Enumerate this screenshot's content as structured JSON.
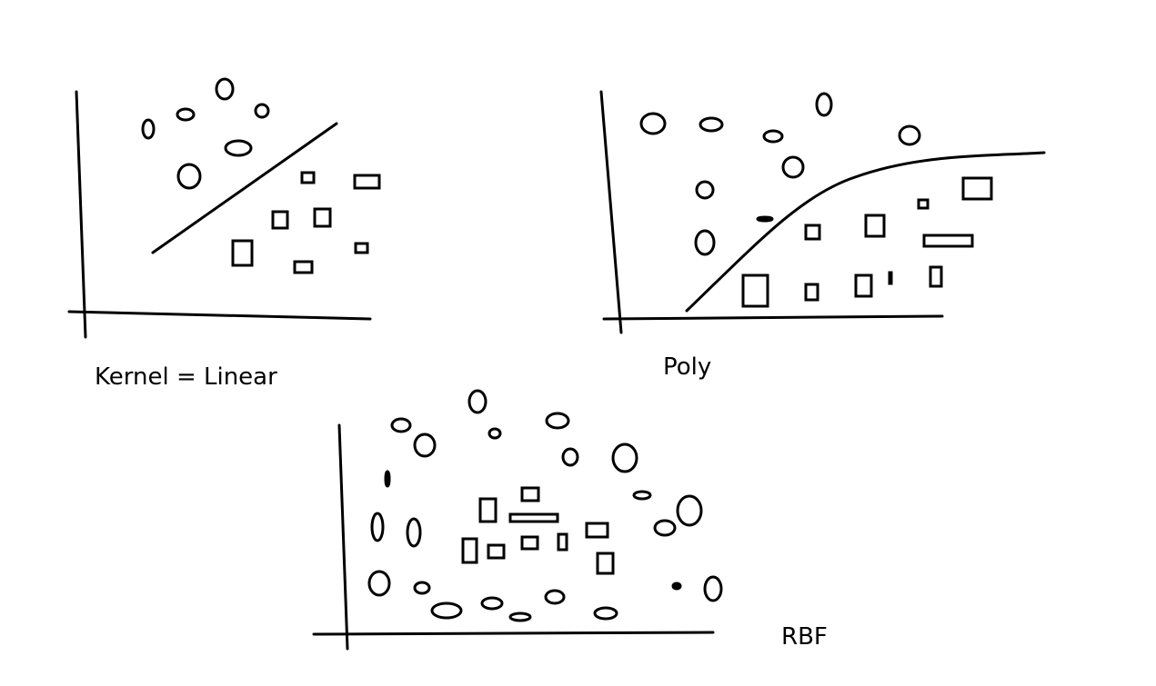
{
  "captions": {
    "linear": "Kernel = Linear",
    "poly": "Poly",
    "rbf": "RBF"
  },
  "colors": {
    "ink": "#000000",
    "background": "#ffffff"
  },
  "panels": [
    {
      "id": "linear",
      "class_markers": [
        "circle",
        "square"
      ],
      "boundary": "straight-line"
    },
    {
      "id": "poly",
      "class_markers": [
        "circle",
        "square"
      ],
      "boundary": "s-curve"
    },
    {
      "id": "rbf",
      "class_markers": [
        "circle",
        "square"
      ],
      "boundary": "none"
    }
  ]
}
